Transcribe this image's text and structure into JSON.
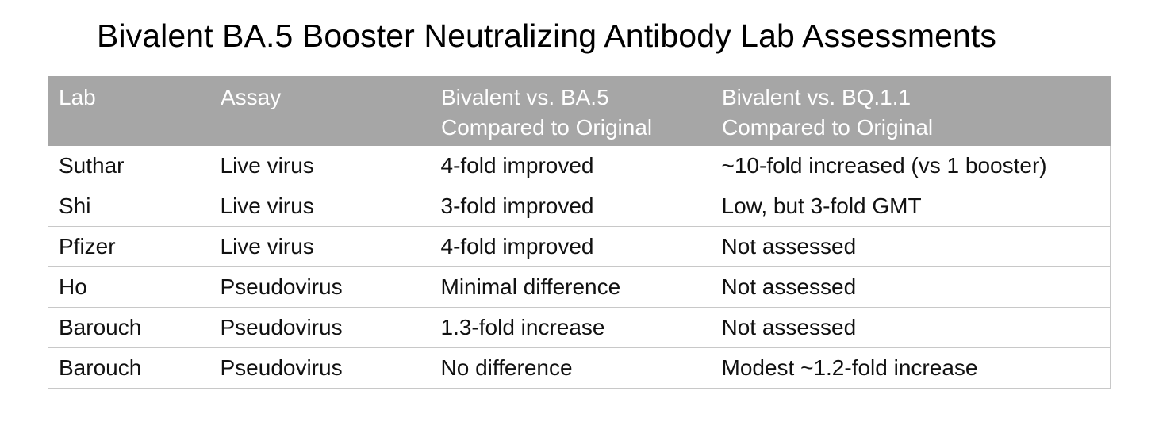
{
  "title": "Bivalent BA.5 Booster Neutralizing Antibody Lab Assessments",
  "table": {
    "headers": [
      [
        "Lab"
      ],
      [
        "Assay"
      ],
      [
        "Bivalent vs. BA.5",
        "Compared to Original"
      ],
      [
        "Bivalent vs. BQ.1.1",
        "Compared to Original"
      ]
    ],
    "rows": [
      [
        "Suthar",
        "Live virus",
        "4-fold improved",
        "~10-fold increased (vs 1 booster)"
      ],
      [
        "Shi",
        "Live virus",
        "3-fold improved",
        "Low, but 3-fold GMT"
      ],
      [
        "Pfizer",
        "Live virus",
        "4-fold improved",
        "Not assessed"
      ],
      [
        "Ho",
        "Pseudovirus",
        "Minimal difference",
        "Not assessed"
      ],
      [
        "Barouch",
        "Pseudovirus",
        "1.3-fold increase",
        "Not assessed"
      ],
      [
        "Barouch",
        "Pseudovirus",
        "No difference",
        "Modest ~1.2-fold increase"
      ]
    ]
  },
  "colors": {
    "header_background": "#a6a6a6",
    "header_text": "#ffffff",
    "grid_line": "#c8c8c8"
  }
}
